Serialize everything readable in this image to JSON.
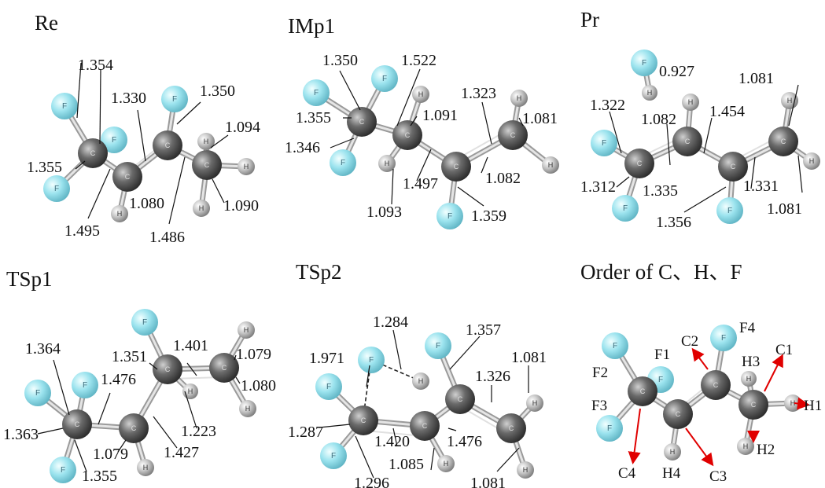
{
  "panels": [
    {
      "id": "Re",
      "title": "Re",
      "labels": [
        "1.354",
        "1.330",
        "1.350",
        "1.094",
        "1.355",
        "1.080",
        "1.090",
        "1.495",
        "1.486"
      ]
    },
    {
      "id": "IMp1",
      "title": "IMp1",
      "labels": [
        "1.350",
        "1.522",
        "1.323",
        "1.355",
        "1.091",
        "1.081",
        "1.346",
        "1.497",
        "1.082",
        "1.093",
        "1.359"
      ]
    },
    {
      "id": "Pr",
      "title": "Pr",
      "labels": [
        "0.927",
        "1.081",
        "1.322",
        "1.454",
        "1.082",
        "1.312",
        "1.335",
        "1.331",
        "1.081",
        "1.356"
      ]
    },
    {
      "id": "TSp1",
      "title": "TSp1",
      "labels": [
        "1.364",
        "1.351",
        "1.401",
        "1.079",
        "1.476",
        "1.080",
        "1.223",
        "1.363",
        "1.079",
        "1.427",
        "1.355"
      ]
    },
    {
      "id": "TSp2",
      "title": "TSp2",
      "labels": [
        "1.284",
        "1.357",
        "1.971",
        "1.326",
        "1.081",
        "1.287",
        "1.420",
        "1.476",
        "1.085",
        "1.296",
        "1.081"
      ]
    },
    {
      "id": "Order",
      "title": "Order of C、H、F",
      "atom_labels": [
        "F4",
        "C2",
        "C1",
        "F2",
        "F1",
        "H3",
        "F3",
        "H1",
        "H2",
        "C4",
        "H4",
        "C3"
      ]
    }
  ],
  "atom_symbols": {
    "carbon": "C",
    "fluorine": "F",
    "hydrogen": "H"
  },
  "colors": {
    "carbon": "#5a5a5a",
    "fluorine": "#8fdbe6",
    "hydrogen": "#bdbdbd",
    "arrow": "#e00000"
  }
}
